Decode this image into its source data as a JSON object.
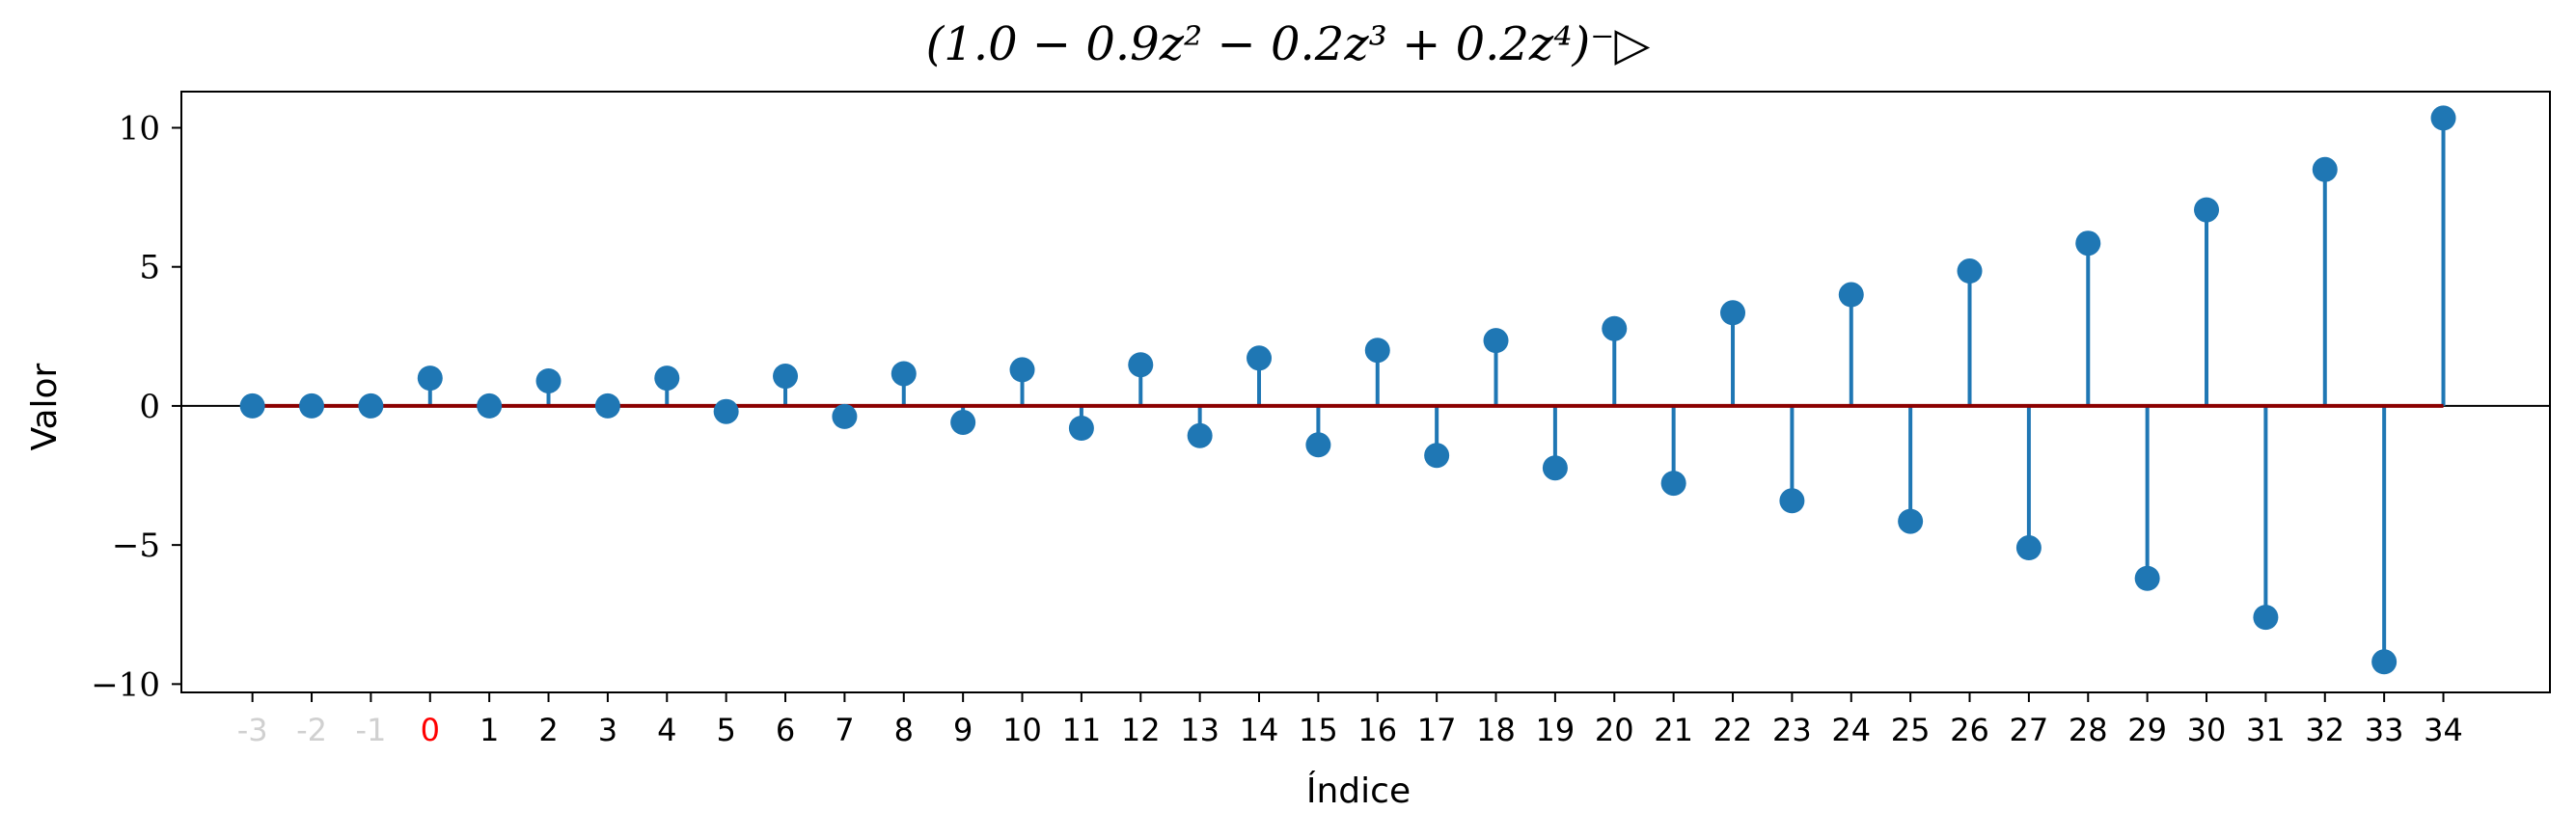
{
  "chart_data": {
    "type": "stem",
    "title": "(1.0 − 0.9z² − 0.2z³ + 0.2z⁴)⁻▷",
    "xlabel": "Índice",
    "ylabel": "Valor",
    "x": [
      -3,
      -2,
      -1,
      0,
      1,
      2,
      3,
      4,
      5,
      6,
      7,
      8,
      9,
      10,
      11,
      12,
      13,
      14,
      15,
      16,
      17,
      18,
      19,
      20,
      21,
      22,
      23,
      24,
      25,
      26,
      27,
      28,
      29,
      30,
      31,
      32,
      33,
      34
    ],
    "x_tick_labels": [
      "-3",
      "-2",
      "-1",
      "0",
      "1",
      "2",
      "3",
      "4",
      "5",
      "6",
      "7",
      "8",
      "9",
      "10",
      "11",
      "12",
      "13",
      "14",
      "15",
      "16",
      "17",
      "18",
      "19",
      "20",
      "21",
      "22",
      "23",
      "24",
      "25",
      "26",
      "27",
      "28",
      "29",
      "30",
      "31",
      "32",
      "33",
      "34"
    ],
    "values": [
      0,
      0,
      0,
      1.0,
      0,
      0.9,
      0,
      1.0,
      -0.2,
      1.07,
      -0.38,
      1.16,
      -0.59,
      1.3,
      -0.8,
      1.48,
      -1.07,
      1.72,
      -1.4,
      2.0,
      -1.78,
      2.35,
      -2.23,
      2.78,
      -2.78,
      3.35,
      -3.41,
      4.0,
      -4.15,
      4.85,
      -5.1,
      5.85,
      -6.2,
      7.05,
      -7.6,
      8.5,
      -9.2,
      10.35
    ],
    "ylim": [
      -10.3,
      11.3
    ],
    "yticks": [
      -10,
      -5,
      0,
      5,
      10
    ],
    "y_tick_labels": [
      "−10",
      "−5",
      "0",
      "5",
      "10"
    ],
    "xlim": [
      -4.2,
      35.8
    ],
    "colors": {
      "stem": "#1f77b4",
      "baseline": "#8b0000",
      "zero_line": "#000000",
      "tick_negative_index": "#d0d0d0",
      "tick_zero_index": "#ff0000",
      "tick_default": "#000000"
    }
  }
}
